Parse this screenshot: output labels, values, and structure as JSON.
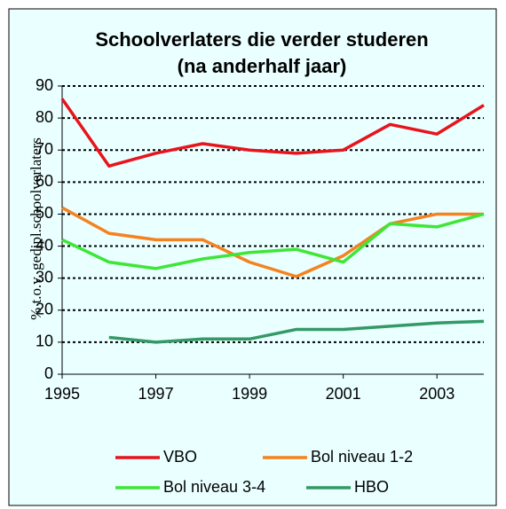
{
  "chart_data": {
    "type": "line",
    "title": "Schoolverlaters die verder studeren (na anderhalf jaar)",
    "y_label": "% t.o.v. gedipl.schoolverlaters",
    "x": [
      1995,
      1996,
      1997,
      1998,
      1999,
      2000,
      2001,
      2002,
      2003,
      2004
    ],
    "series": [
      {
        "name": "VBO",
        "color": "#e8141c",
        "values": [
          86,
          65,
          69,
          72,
          70,
          69,
          70,
          78,
          75,
          84
        ]
      },
      {
        "name": "Bol niveau 1-2",
        "color": "#f5821f",
        "values": [
          52,
          44,
          42,
          42,
          35,
          30.5,
          37,
          47,
          50,
          50
        ]
      },
      {
        "name": "Bol niveau 3-4",
        "color": "#3ee636",
        "values": [
          42,
          35,
          33,
          36,
          38,
          39,
          35,
          47,
          46,
          50
        ]
      },
      {
        "name": "HBO",
        "color": "#339966",
        "values": [
          null,
          11.5,
          10,
          11,
          11,
          14,
          14,
          15,
          16,
          16.5
        ]
      }
    ],
    "xlim": [
      1995,
      2004
    ],
    "xticks": [
      1995,
      1997,
      1999,
      2001,
      2003
    ],
    "ylim": [
      0,
      90
    ],
    "yticks": [
      0,
      10,
      20,
      30,
      40,
      50,
      60,
      70,
      80,
      90
    ],
    "grid": true,
    "legend": "bottom"
  }
}
